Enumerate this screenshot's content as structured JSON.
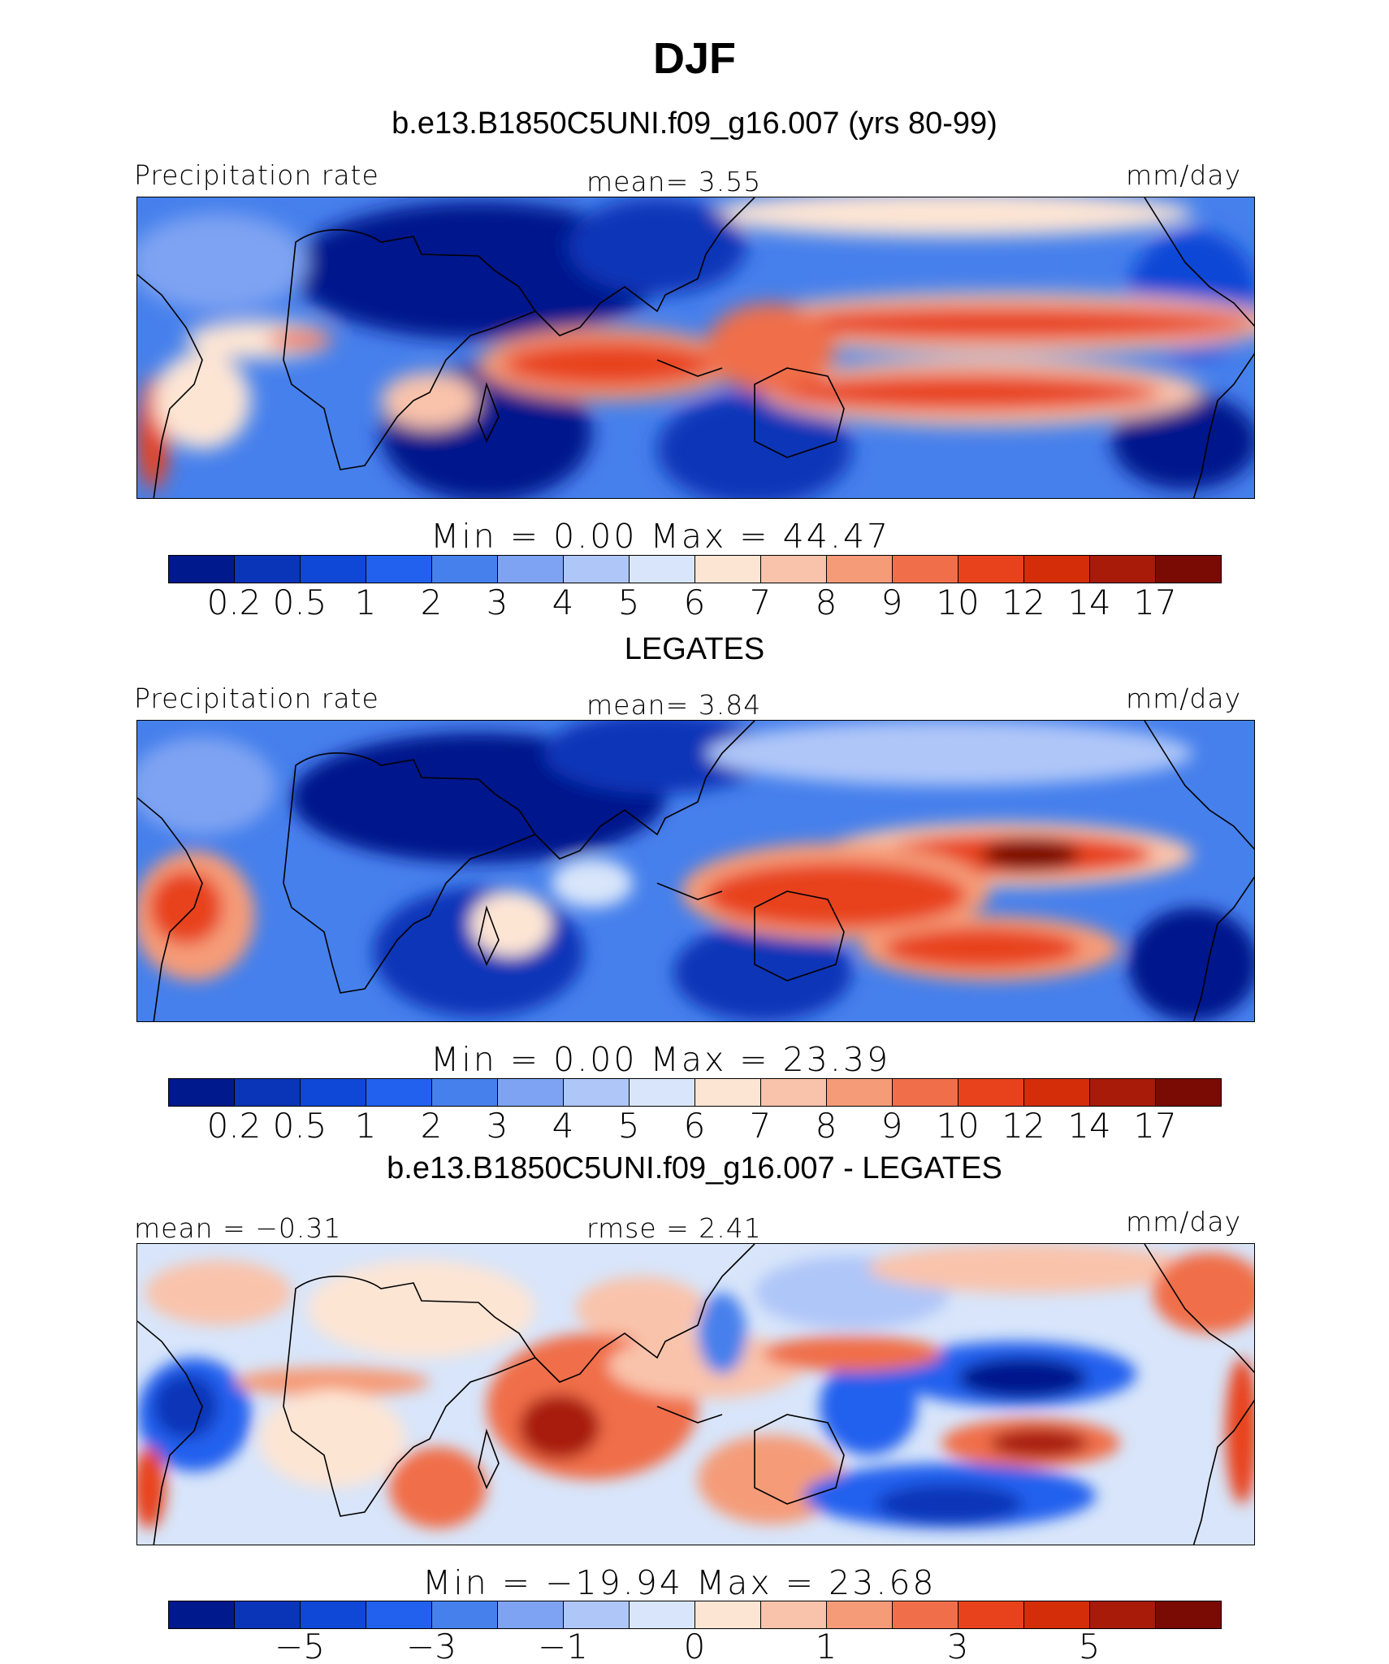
{
  "figure": {
    "season": "DJF",
    "case_title": "b.e13.B1850C5UNI.f09_g16.007 (yrs 80-99)",
    "obs_title": "LEGATES",
    "diff_title": "b.e13.B1850C5UNI.f09_g16.007 - LEGATES"
  },
  "panels": [
    {
      "left_label": "Precipitation rate",
      "center_label": "mean=    3.55",
      "right_label": "mm/day",
      "min_max": "Min  =     0.00  Max  =    44.47",
      "colorbar_ticks": [
        "0.2",
        "0.5",
        "1",
        "2",
        "3",
        "4",
        "5",
        "6",
        "7",
        "8",
        "9",
        "10",
        "12",
        "14",
        "17"
      ]
    },
    {
      "left_label": "Precipitation rate",
      "center_label": "mean=    3.84",
      "right_label": "mm/day",
      "min_max": "Min  =     0.00  Max  =    23.39",
      "colorbar_ticks": [
        "0.2",
        "0.5",
        "1",
        "2",
        "3",
        "4",
        "5",
        "6",
        "7",
        "8",
        "9",
        "10",
        "12",
        "14",
        "17"
      ]
    },
    {
      "left_label": "mean  =   −0.31",
      "center_label": "rmse  =    2.41",
      "right_label": "mm/day",
      "min_max": "Min  = −19.94  Max  =    23.68",
      "colorbar_ticks": [
        "−5",
        "−3",
        "−1",
        "0",
        "1",
        "3",
        "5"
      ]
    }
  ],
  "colors": {
    "scale": [
      "#00198c",
      "#0a35b8",
      "#0f47d6",
      "#2161ee",
      "#4680ec",
      "#7ea3f2",
      "#afc6f8",
      "#d8e5fa",
      "#fde5d4",
      "#f9c3ab",
      "#f59b78",
      "#f06e4a",
      "#e8421c",
      "#d42d0a",
      "#a81b08",
      "#7a0a04"
    ]
  }
}
